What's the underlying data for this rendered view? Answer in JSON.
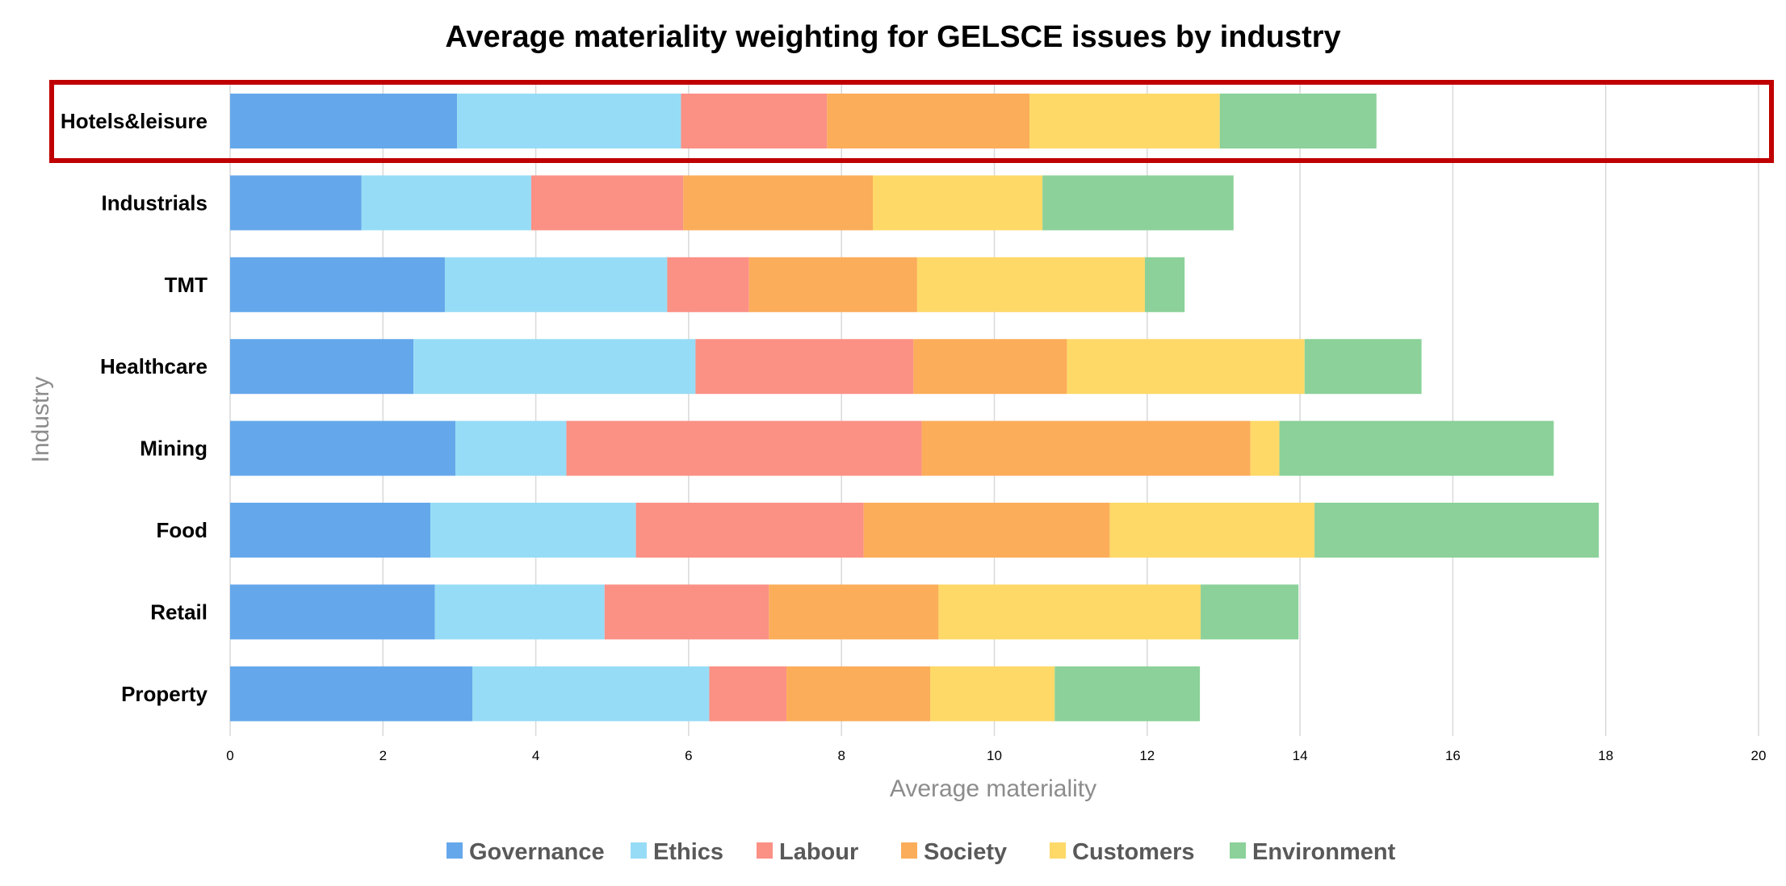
{
  "chart_data": {
    "type": "bar",
    "orientation": "horizontal",
    "stacked": true,
    "title": "Average materiality weighting for GELSCE issues by industry",
    "xlabel": "Average materiality",
    "ylabel": "Industry",
    "xlim": [
      0,
      20
    ],
    "xticks": [
      "0",
      "2",
      "4",
      "6",
      "8",
      "10",
      "12",
      "14",
      "16",
      "18",
      "20"
    ],
    "grid": true,
    "legend_position": "bottom",
    "highlighted_category": "Hotels&leisure",
    "highlight_color": "#c00000",
    "categories": [
      "Hotels&leisure",
      "Industrials",
      "TMT",
      "Healthcare",
      "Mining",
      "Food",
      "Retail",
      "Property"
    ],
    "series": [
      {
        "name": "Governance",
        "color": "#64a8eb",
        "values": [
          2.97,
          1.72,
          2.81,
          2.4,
          2.95,
          2.62,
          2.68,
          3.17
        ]
      },
      {
        "name": "Ethics",
        "color": "#97dcf6",
        "values": [
          2.93,
          2.22,
          2.91,
          3.69,
          1.45,
          2.69,
          2.22,
          3.1
        ]
      },
      {
        "name": "Labour",
        "color": "#fb9085",
        "values": [
          1.91,
          1.99,
          1.07,
          2.85,
          4.65,
          2.98,
          2.15,
          1.01
        ]
      },
      {
        "name": "Society",
        "color": "#fbad5a",
        "values": [
          2.65,
          2.48,
          2.2,
          2.01,
          4.3,
          3.22,
          2.22,
          1.88
        ]
      },
      {
        "name": "Customers",
        "color": "#fed968",
        "values": [
          2.49,
          2.22,
          2.98,
          3.11,
          0.38,
          2.68,
          3.43,
          1.63
        ]
      },
      {
        "name": "Environment",
        "color": "#8bd199",
        "values": [
          2.05,
          2.5,
          0.52,
          1.53,
          3.59,
          3.72,
          1.28,
          1.9
        ]
      }
    ]
  }
}
